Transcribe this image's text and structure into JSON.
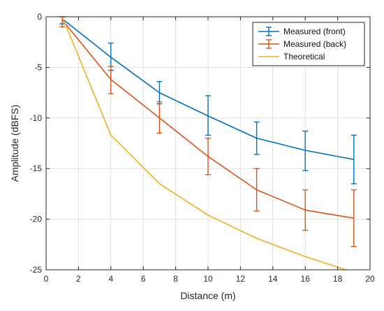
{
  "chart_data": {
    "type": "line",
    "title": "",
    "xlabel": "Distance (m)",
    "ylabel": "Amplitude (dBFS)",
    "xlim": [
      0,
      20
    ],
    "ylim": [
      -25,
      0
    ],
    "xticks": [
      0,
      2,
      4,
      6,
      8,
      10,
      12,
      14,
      16,
      18,
      20
    ],
    "yticks": [
      0,
      -5,
      -10,
      -15,
      -20,
      -25
    ],
    "grid": true,
    "legend_position": "top-right",
    "series": [
      {
        "name": "Measured (front)",
        "color": "#0072BD",
        "x": [
          1,
          4,
          7,
          10,
          13,
          16,
          19
        ],
        "y": [
          -0.2,
          -4,
          -7.5,
          -9.8,
          -12,
          -13.2,
          -14.1
        ],
        "error_low": [
          -0.7,
          -5.3,
          -8.6,
          -11.7,
          -13.6,
          -15.2,
          -16.5
        ],
        "error_high": [
          0.0,
          -2.6,
          -6.4,
          -7.8,
          -10.4,
          -11.3,
          -11.7
        ]
      },
      {
        "name": "Measured (back)",
        "color": "#D95319",
        "x": [
          1,
          4,
          7,
          10,
          13,
          16,
          19
        ],
        "y": [
          -0.3,
          -6.2,
          -10,
          -13.8,
          -17.1,
          -19.1,
          -19.9
        ],
        "error_low": [
          -1.0,
          -7.6,
          -11.5,
          -15.6,
          -19.2,
          -21.1,
          -22.7
        ],
        "error_high": [
          0.0,
          -4.9,
          -8.4,
          -12,
          -15,
          -17.1,
          -17.1
        ]
      },
      {
        "name": "Theoretical",
        "color": "#EDB120",
        "x": [
          1,
          4,
          7,
          10,
          13,
          16,
          18.5
        ],
        "y": [
          0,
          -11.7,
          -16.5,
          -19.6,
          -21.9,
          -23.7,
          -25
        ]
      }
    ]
  }
}
